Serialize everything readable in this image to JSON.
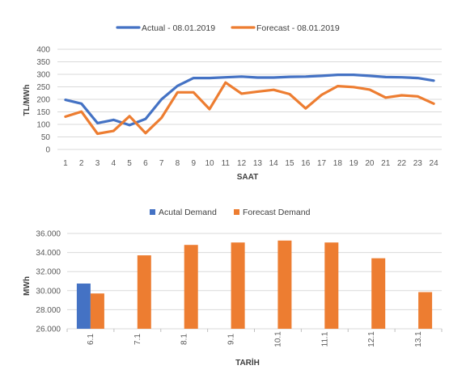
{
  "chart_data": [
    {
      "type": "line",
      "title": "",
      "xlabel": "SAAT",
      "ylabel": "TL/MWh",
      "ylim": [
        0,
        400
      ],
      "yticks": [
        0,
        50,
        100,
        150,
        200,
        250,
        300,
        350,
        400
      ],
      "grid": true,
      "legend_position": "top",
      "x": [
        1,
        2,
        3,
        4,
        5,
        6,
        7,
        8,
        9,
        10,
        11,
        12,
        13,
        14,
        15,
        16,
        17,
        18,
        19,
        20,
        21,
        22,
        23,
        24
      ],
      "series": [
        {
          "name": "Actual - 08.01.2019",
          "color": "#4472c4",
          "values": [
            198,
            183,
            105,
            118,
            97,
            122,
            200,
            254,
            285,
            285,
            288,
            291,
            287,
            287,
            290,
            291,
            294,
            298,
            298,
            294,
            289,
            288,
            285,
            275
          ]
        },
        {
          "name": "Forecast - 08.01.2019",
          "color": "#ed7d31",
          "values": [
            131,
            151,
            63,
            74,
            133,
            65,
            126,
            228,
            228,
            161,
            267,
            223,
            231,
            238,
            221,
            164,
            218,
            253,
            249,
            239,
            207,
            216,
            212,
            183
          ]
        }
      ]
    },
    {
      "type": "bar",
      "title": "",
      "xlabel": "TARİH",
      "ylabel": "MWh",
      "ylim": [
        26000,
        36000
      ],
      "yticks": [
        "26.000",
        "28.000",
        "30.000",
        "32.000",
        "34.000",
        "36.000"
      ],
      "ytick_values": [
        26000,
        28000,
        30000,
        32000,
        34000,
        36000
      ],
      "grid": true,
      "legend_position": "top",
      "categories": [
        "6.1",
        "7.1",
        "8.1",
        "9.1",
        "10.1",
        "11.1",
        "12.1",
        "13.1"
      ],
      "series": [
        {
          "name": "Acutal Demand",
          "color": "#4472c4",
          "values": [
            30750,
            null,
            null,
            null,
            null,
            null,
            null,
            null
          ]
        },
        {
          "name": "Forecast Demand",
          "color": "#ed7d31",
          "values": [
            29700,
            33700,
            34800,
            35050,
            35250,
            35050,
            33400,
            29850
          ]
        }
      ]
    }
  ]
}
